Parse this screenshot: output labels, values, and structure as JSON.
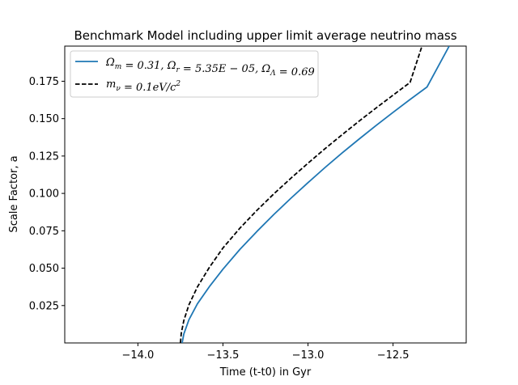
{
  "chart_data": {
    "type": "line",
    "title": "Benchmark Model including upper limit average neutrino mass",
    "xlabel": "Time (t-t0) in Gyr",
    "ylabel": "Scale Factor, a",
    "xlim": [
      -14.43,
      -12.07
    ],
    "ylim": [
      0.0,
      0.1985
    ],
    "xticks": [
      {
        "value": -14.0,
        "label": "−14.0"
      },
      {
        "value": -13.5,
        "label": "−13.5"
      },
      {
        "value": -13.0,
        "label": "−13.0"
      },
      {
        "value": -12.5,
        "label": "−12.5"
      }
    ],
    "yticks": [
      {
        "value": 0.025,
        "label": "0.025"
      },
      {
        "value": 0.05,
        "label": "0.050"
      },
      {
        "value": 0.075,
        "label": "0.075"
      },
      {
        "value": 0.1,
        "label": "0.100"
      },
      {
        "value": 0.125,
        "label": "0.125"
      },
      {
        "value": 0.15,
        "label": "0.150"
      },
      {
        "value": 0.175,
        "label": "0.175"
      }
    ],
    "legend_position": "top-left",
    "grid": false,
    "series": [
      {
        "name": "Ωm = 0.31, Ωr = 5.35E − 05, ΩΛ = 0.69",
        "color": "#1f77b4",
        "style": "solid",
        "x": [
          -13.74,
          -13.73,
          -13.7,
          -13.65,
          -13.58,
          -13.5,
          -13.4,
          -13.3,
          -13.2,
          -13.1,
          -13.0,
          -12.9,
          -12.8,
          -12.7,
          -12.6,
          -12.5,
          -12.4,
          -12.3,
          -12.17
        ],
        "y": [
          0.0,
          0.006,
          0.0155,
          0.0262,
          0.0376,
          0.0493,
          0.0626,
          0.0746,
          0.086,
          0.0968,
          0.1072,
          0.1173,
          0.127,
          0.1363,
          0.1454,
          0.1542,
          0.1628,
          0.1712,
          0.1985
        ]
      },
      {
        "name": "mν = 0.1eV/c²",
        "color": "#000000",
        "style": "dashed",
        "x": [
          -13.75,
          -13.745,
          -13.73,
          -13.7,
          -13.65,
          -13.58,
          -13.5,
          -13.4,
          -13.3,
          -13.2,
          -13.1,
          -13.0,
          -12.9,
          -12.8,
          -12.7,
          -12.6,
          -12.5,
          -12.4,
          -12.33
        ],
        "y": [
          0.0,
          0.0065,
          0.015,
          0.0255,
          0.0375,
          0.0505,
          0.0635,
          0.0768,
          0.0887,
          0.0998,
          0.1102,
          0.1202,
          0.1299,
          0.1392,
          0.1483,
          0.1571,
          0.1657,
          0.1742,
          0.1985
        ]
      }
    ]
  },
  "legend": {
    "entry_1": {
      "parts": [
        {
          "t": "Ω",
          "sub": "m"
        },
        {
          "t": " = 0.31, "
        },
        {
          "t": "Ω",
          "sub": "r"
        },
        {
          "t": " = 5.35E − 05, "
        },
        {
          "t": "Ω",
          "sub": "Λ"
        },
        {
          "t": " = 0.69"
        }
      ]
    },
    "entry_2": {
      "parts": [
        {
          "t": "m",
          "sub": "ν"
        },
        {
          "t": " = 0.1eV/c",
          "sup": "2"
        }
      ]
    }
  }
}
